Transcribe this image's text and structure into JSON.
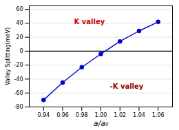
{
  "chart_data": {
    "type": "line",
    "x": [
      0.94,
      0.96,
      0.98,
      1.0,
      1.02,
      1.04,
      1.06
    ],
    "values": [
      -70,
      -45,
      -23,
      -4,
      14,
      29,
      42
    ],
    "color": "#0000cc",
    "marker": "circle",
    "line_style": "solid",
    "xlabel": "a/a₀",
    "ylabel": "Valley Splitting(meV)",
    "xlim": [
      0.925,
      1.075
    ],
    "ylim": [
      -80,
      65
    ],
    "xticks": [
      0.94,
      0.96,
      0.98,
      {
        "value": 1.0,
        "label": "1.00"
      },
      1.02,
      1.04,
      1.06
    ],
    "yticks": [
      -80,
      -60,
      -40,
      -20,
      0,
      20,
      40,
      60
    ],
    "grid": true,
    "reference_line": 0,
    "annotations": [
      {
        "text": "K valley",
        "color": "#cc0000"
      },
      {
        "text": "-K valley",
        "color": "#8b0000"
      }
    ]
  }
}
